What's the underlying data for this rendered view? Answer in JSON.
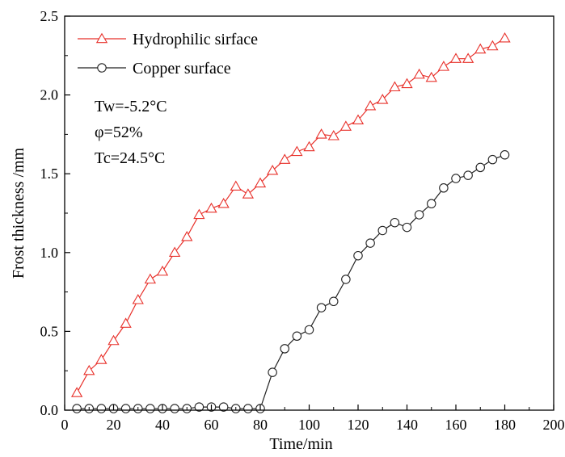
{
  "chart_data": {
    "type": "line",
    "title": "",
    "xlabel": "Time/min",
    "ylabel": "Frost thickness /mm",
    "xlim": [
      0,
      200
    ],
    "ylim": [
      0,
      2.5
    ],
    "xticks": [
      "0",
      "20",
      "40",
      "60",
      "80",
      "100",
      "120",
      "140",
      "160",
      "180",
      "200"
    ],
    "yticks": [
      "0.0",
      "0.5",
      "1.0",
      "1.5",
      "2.0",
      "2.5"
    ],
    "grid": false,
    "legend_position": "top-left",
    "annotations": [
      "Tw=-5.2°C",
      "φ=52%",
      "Tc=24.5°C"
    ],
    "series": [
      {
        "name": "Hydrophilic sirface",
        "color": "#e8302a",
        "marker": "triangle",
        "x": [
          5,
          10,
          15,
          20,
          25,
          30,
          35,
          40,
          45,
          50,
          55,
          60,
          65,
          70,
          75,
          80,
          85,
          90,
          95,
          100,
          105,
          110,
          115,
          120,
          125,
          130,
          135,
          140,
          145,
          150,
          155,
          160,
          165,
          170,
          175,
          180
        ],
        "y": [
          0.11,
          0.25,
          0.32,
          0.44,
          0.55,
          0.7,
          0.83,
          0.88,
          1.0,
          1.1,
          1.24,
          1.28,
          1.31,
          1.42,
          1.37,
          1.44,
          1.52,
          1.59,
          1.64,
          1.67,
          1.75,
          1.74,
          1.8,
          1.84,
          1.93,
          1.97,
          2.05,
          2.07,
          2.13,
          2.11,
          2.18,
          2.23,
          2.23,
          2.29,
          2.31,
          2.36
        ]
      },
      {
        "name": "Copper surface",
        "color": "#222222",
        "marker": "circle",
        "x": [
          5,
          10,
          15,
          20,
          25,
          30,
          35,
          40,
          45,
          50,
          55,
          60,
          65,
          70,
          75,
          80,
          85,
          90,
          95,
          100,
          105,
          110,
          115,
          120,
          125,
          130,
          135,
          140,
          145,
          150,
          155,
          160,
          165,
          170,
          175,
          180
        ],
        "y": [
          0.01,
          0.01,
          0.01,
          0.01,
          0.01,
          0.01,
          0.01,
          0.01,
          0.01,
          0.01,
          0.02,
          0.02,
          0.02,
          0.01,
          0.01,
          0.01,
          0.24,
          0.39,
          0.47,
          0.51,
          0.65,
          0.69,
          0.83,
          0.98,
          1.06,
          1.14,
          1.19,
          1.16,
          1.24,
          1.31,
          1.41,
          1.47,
          1.49,
          1.54,
          1.59,
          1.62
        ]
      }
    ]
  }
}
